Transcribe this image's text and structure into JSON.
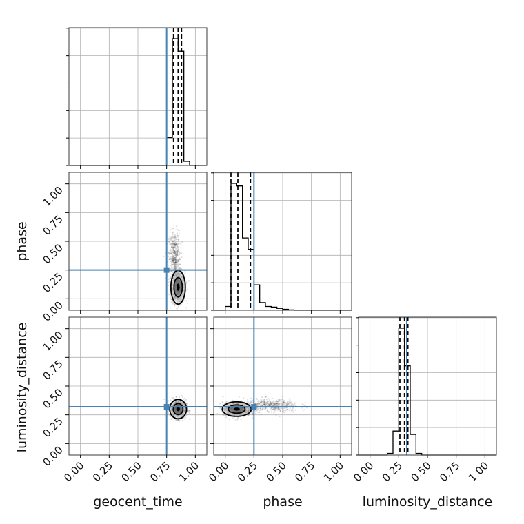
{
  "chart_data": {
    "type": "corner",
    "parameters": [
      "geocent_time",
      "phase",
      "luminosity_distance"
    ],
    "axis_range": [
      -0.1,
      1.1
    ],
    "ticks": [
      0.0,
      0.25,
      0.5,
      0.75,
      1.0
    ],
    "tick_labels": [
      "0.00",
      "0.25",
      "0.50",
      "0.75",
      "1.00"
    ],
    "grid": true,
    "truths": {
      "geocent_time": 0.75,
      "phase": 0.25,
      "luminosity_distance": 0.32
    },
    "colors": {
      "truth": "#4682b4",
      "hist": "#000000",
      "samples": "#000000"
    },
    "histograms": {
      "geocent_time": {
        "bin_edges": [
          0.75,
          0.8,
          0.85,
          0.9,
          0.95
        ],
        "counts": [
          0.2,
          0.91,
          0.82,
          0.03
        ],
        "quantiles": [
          0.81,
          0.85,
          0.88
        ]
      },
      "phase": {
        "bin_edges": [
          0.0,
          0.05,
          0.1,
          0.15,
          0.2,
          0.25,
          0.3,
          0.35,
          0.4,
          0.45,
          0.5,
          0.55,
          0.6
        ],
        "counts": [
          0.03,
          1.0,
          0.98,
          0.57,
          0.48,
          0.2,
          0.06,
          0.03,
          0.025,
          0.015,
          0.008,
          0.003
        ],
        "quantiles": [
          0.05,
          0.11,
          0.22
        ]
      },
      "luminosity_distance": {
        "bin_edges": [
          0.15,
          0.2,
          0.25,
          0.3,
          0.35,
          0.4,
          0.45
        ],
        "counts": [
          0.01,
          0.14,
          0.74,
          0.52,
          0.12,
          0.01
        ],
        "quantiles": [
          0.26,
          0.3,
          0.33
        ]
      }
    },
    "hist2d": [
      {
        "x": "geocent_time",
        "y": "phase",
        "center": [
          0.85,
          0.1
        ],
        "spread": [
          0.03,
          0.07
        ],
        "tail": {
          "center": [
            0.82,
            0.35
          ],
          "spread": [
            0.025,
            0.12
          ]
        }
      },
      {
        "x": "geocent_time",
        "y": "luminosity_distance",
        "center": [
          0.85,
          0.3
        ],
        "spread": [
          0.035,
          0.04
        ]
      },
      {
        "x": "phase",
        "y": "luminosity_distance",
        "center": [
          0.1,
          0.3
        ],
        "spread": [
          0.06,
          0.03
        ],
        "tail": {
          "center": [
            0.4,
            0.33
          ],
          "spread": [
            0.12,
            0.03
          ]
        }
      }
    ]
  }
}
